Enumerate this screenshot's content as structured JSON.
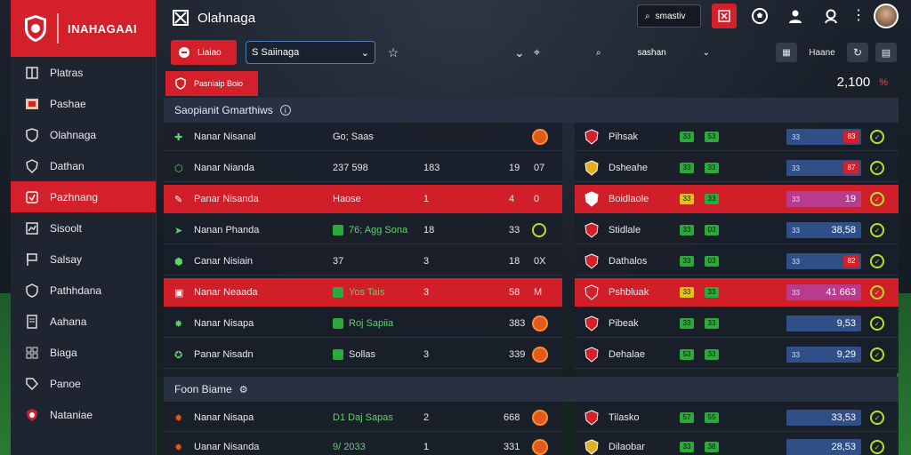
{
  "app": {
    "sidebar_title": "INAHAGAAI",
    "window_title": "Olahnaga"
  },
  "sidebar": {
    "items": [
      {
        "label": "Platras",
        "icon": "book-icon"
      },
      {
        "label": "Pashae",
        "icon": "card-icon"
      },
      {
        "label": "Olahnaga",
        "icon": "shield-icon"
      },
      {
        "label": "Dathan",
        "icon": "shield-outline-icon"
      },
      {
        "label": "Pazhnang",
        "icon": "shield-square-icon",
        "active": true
      },
      {
        "label": "Sisoolt",
        "icon": "chart-icon"
      },
      {
        "label": "Salsay",
        "icon": "flag-icon"
      },
      {
        "label": "Pathhdana",
        "icon": "shield-check-icon"
      },
      {
        "label": "Aahana",
        "icon": "document-icon"
      },
      {
        "label": "Biaga",
        "icon": "grid-icon"
      },
      {
        "label": "Panoe",
        "icon": "tag-icon"
      },
      {
        "label": "Nataniae",
        "icon": "crest-icon"
      }
    ]
  },
  "topbar": {
    "search_label": "smastiv"
  },
  "toolbar": {
    "red_button": "Liaiao",
    "select_value": "S Saiinaga",
    "search2_label": "sashan",
    "right_label": "Haane"
  },
  "subheader": {
    "label": "Pasniaip Boio",
    "balance": "2,100",
    "currency": "%"
  },
  "section1": {
    "title": "Saopianit Gmarthiws"
  },
  "section2": {
    "title": "Foon Biame"
  },
  "left_rows": [
    {
      "name": "Nanar Nisanal",
      "c2": "Go; Saas",
      "c3": "",
      "c4": "",
      "c5": "",
      "hl": false
    },
    {
      "name": "Nanar Nianda",
      "c2": "237 598",
      "c3": "183",
      "c4": "19",
      "c5": "07",
      "hl": false
    },
    {
      "name": "Panar Nisanda",
      "c2": "Haose",
      "c3": "1",
      "c4": "4",
      "c5": "0",
      "hl": true
    },
    {
      "name": "Nanan Phanda",
      "c2": "76; Agg Sona",
      "c3": "18",
      "c4": "33",
      "c5": "",
      "hl": false
    },
    {
      "name": "Canar Nisiain",
      "c2": "37",
      "c3": "3",
      "c4": "18",
      "c5": "0X",
      "hl": false
    },
    {
      "name": "Nanar Neaada",
      "c2": "Yos Tais",
      "c3": "3",
      "c4": "58",
      "c5": "M",
      "hl": true
    },
    {
      "name": "Nanar Nisapa",
      "c2": "Roj Sapiia",
      "c3": "",
      "c4": "383",
      "c5": "",
      "hl": false
    },
    {
      "name": "Panar Nisadn",
      "c2": "Sollas",
      "c3": "3",
      "c4": "339",
      "c5": "",
      "hl": false
    }
  ],
  "right_rows": [
    {
      "team": "Pihsak",
      "b1": "33",
      "b2": "53",
      "odds_label": "33",
      "val": "38",
      "red": "83",
      "hl": false
    },
    {
      "team": "Dsheahe",
      "b1": "33",
      "b2": "33",
      "odds_label": "33",
      "val": "53",
      "red": "87",
      "hl": false
    },
    {
      "team": "Boidlaole",
      "b1": "33",
      "b2": "33",
      "odds_label": "33",
      "val": "19",
      "red": "",
      "hl": true
    },
    {
      "team": "Stidlale",
      "b1": "33",
      "b2": "03",
      "odds_label": "33",
      "val": "38,58",
      "red": "",
      "hl": false
    },
    {
      "team": "Dathalos",
      "b1": "33",
      "b2": "03",
      "odds_label": "33",
      "val": "58",
      "red": "82",
      "hl": false
    },
    {
      "team": "Pshbluak",
      "b1": "33",
      "b2": "33",
      "odds_label": "33",
      "val": "41 663",
      "red": "",
      "hl": true
    },
    {
      "team": "Pibeak",
      "b1": "33",
      "b2": "33",
      "odds_label": "",
      "val": "9,53",
      "red": "",
      "hl": false
    },
    {
      "team": "Dehalae",
      "b1": "53",
      "b2": "33",
      "odds_label": "33",
      "val": "9,29",
      "red": "",
      "hl": false
    }
  ],
  "bottom_left_rows": [
    {
      "name": "Nanar Nisapa",
      "c2": "D1 Daj Sapas",
      "c3": "2",
      "c4": "668"
    },
    {
      "name": "Uanar Nisanda",
      "c2": "9/ 2033",
      "c3": "1",
      "c4": "331"
    }
  ],
  "bottom_right_rows": [
    {
      "team": "Tilasko",
      "b1": "57",
      "b2": "55",
      "val": "33,53"
    },
    {
      "team": "Dilaobar",
      "b1": "33",
      "b2": "38",
      "val": "28,53"
    }
  ],
  "colors": {
    "accent_red": "#d3202a",
    "accent_green": "#2da83a",
    "accent_blue": "#2f4f86",
    "bg": "#10161f"
  }
}
